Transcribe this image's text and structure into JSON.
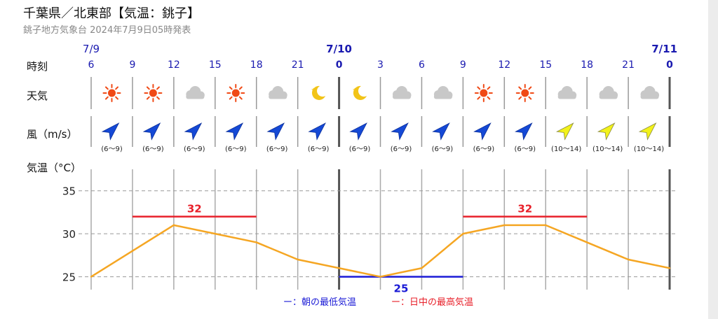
{
  "header": {
    "title": "千葉県／北東部【気温：銚子】",
    "issued": "銚子地方気象台 2024年7月9日05時発表"
  },
  "rows": {
    "time_label": "時刻",
    "weather_label": "天気",
    "wind_label": "風（m/s）",
    "temp_label": "気温（°C）"
  },
  "legend": {
    "min_text": "ー：朝の最低気温",
    "max_text": "ー：日中の最高気温"
  },
  "colors": {
    "temp_line": "#f5a623",
    "max_line": "#e8202a",
    "min_line": "#1a1ad6",
    "date_blue": "#1a1ab0",
    "arrow_blue": "#1549d6",
    "arrow_yellow": "#f2f21a",
    "sun": "#f04a16",
    "moon": "#f2c418",
    "cloud": "#c8c8c8"
  },
  "forecast": {
    "dates": [
      {
        "label": "7/9",
        "at_index": 0
      },
      {
        "label": "7/10",
        "at_index": 6
      },
      {
        "label": "7/11",
        "at_index": 14
      }
    ],
    "hours": [
      "6",
      "9",
      "12",
      "15",
      "18",
      "21",
      "0",
      "3",
      "6",
      "9",
      "12",
      "15",
      "18",
      "21",
      "0"
    ],
    "midnight_indices": [
      6,
      14
    ],
    "weather": [
      "sun-icon",
      "sun-icon",
      "cloud-icon",
      "sun-icon",
      "cloud-icon",
      "moon-icon",
      "moon-icon",
      "cloud-icon",
      "cloud-icon",
      "sun-icon",
      "sun-icon",
      "cloud-icon",
      "cloud-icon",
      "cloud-icon"
    ],
    "wind": [
      {
        "dir": "north-east",
        "speed": "(6〜9)",
        "strength": "moderate"
      },
      {
        "dir": "north-east",
        "speed": "(6〜9)",
        "strength": "moderate"
      },
      {
        "dir": "north-east",
        "speed": "(6〜9)",
        "strength": "moderate"
      },
      {
        "dir": "north-east",
        "speed": "(6〜9)",
        "strength": "moderate"
      },
      {
        "dir": "north-east",
        "speed": "(6〜9)",
        "strength": "moderate"
      },
      {
        "dir": "north-east",
        "speed": "(6〜9)",
        "strength": "moderate"
      },
      {
        "dir": "north-east",
        "speed": "(6〜9)",
        "strength": "moderate"
      },
      {
        "dir": "north-east",
        "speed": "(6〜9)",
        "strength": "moderate"
      },
      {
        "dir": "north-east",
        "speed": "(6〜9)",
        "strength": "moderate"
      },
      {
        "dir": "north-east",
        "speed": "(6〜9)",
        "strength": "moderate"
      },
      {
        "dir": "north-east",
        "speed": "(6〜9)",
        "strength": "moderate"
      },
      {
        "dir": "north-east",
        "speed": "(10〜14)",
        "strength": "strong"
      },
      {
        "dir": "north-east",
        "speed": "(10〜14)",
        "strength": "strong"
      },
      {
        "dir": "north-east",
        "speed": "(10〜14)",
        "strength": "strong"
      }
    ]
  },
  "chart_data": {
    "type": "line",
    "x": [
      "7/9 6",
      "9",
      "12",
      "15",
      "18",
      "21",
      "7/10 0",
      "3",
      "6",
      "9",
      "12",
      "15",
      "18",
      "21",
      "7/11 0"
    ],
    "series": [
      {
        "values": [
          25,
          28,
          31,
          30,
          29,
          27,
          26,
          25,
          26,
          30,
          31,
          31,
          29,
          27,
          26
        ]
      }
    ],
    "yticks": [
      25,
      30,
      35
    ],
    "ylim": [
      23.5,
      37.5
    ],
    "grid": true,
    "daily_max": [
      {
        "value": 32,
        "label": "32",
        "from_index": 1,
        "to_index": 4
      },
      {
        "value": 32,
        "label": "32",
        "from_index": 9,
        "to_index": 12
      }
    ],
    "daily_min": [
      {
        "value": 25,
        "label": "25",
        "from_index": 6,
        "to_index": 9
      }
    ]
  }
}
